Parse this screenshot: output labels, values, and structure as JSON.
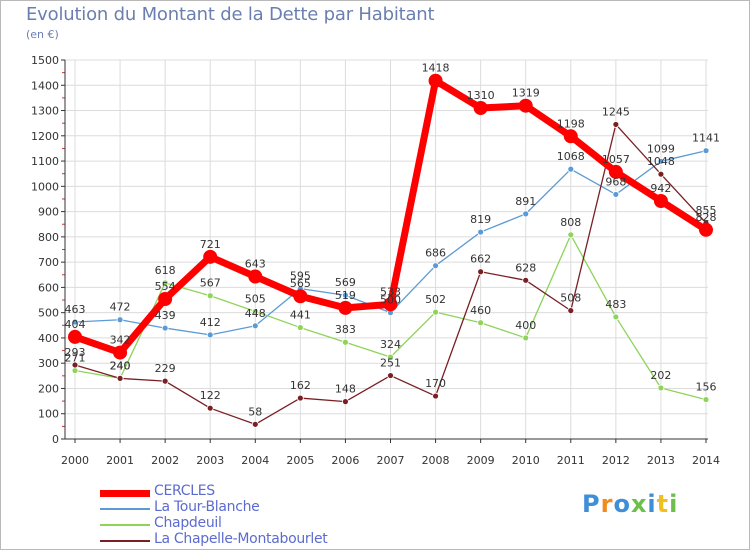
{
  "title": "Evolution du Montant de la Dette par Habitant",
  "subtitle": "(en €)",
  "logo": {
    "text": "Proxiti",
    "letter_colors": [
      "#3f8fd6",
      "#f28b1e",
      "#3f8fd6",
      "#6cc04a",
      "#3f8fd6",
      "#f2c01e",
      "#6cc04a"
    ]
  },
  "chart_data": {
    "type": "line",
    "categories": [
      "2000",
      "2001",
      "2002",
      "2003",
      "2004",
      "2005",
      "2006",
      "2007",
      "2008",
      "2009",
      "2010",
      "2011",
      "2012",
      "2013",
      "2014"
    ],
    "ylim": [
      0,
      1500
    ],
    "yticks": [
      0,
      100,
      200,
      300,
      400,
      500,
      600,
      700,
      800,
      900,
      1000,
      1100,
      1200,
      1300,
      1400,
      1500
    ],
    "grid": true,
    "legend_position": "bottom-left",
    "series": [
      {
        "name": "CERCLES",
        "color": "#ff0000",
        "stroke_width": 7,
        "marker_radius": 7,
        "values": [
          404,
          342,
          554,
          721,
          643,
          565,
          519,
          533,
          1418,
          1310,
          1319,
          1198,
          1057,
          942,
          828
        ]
      },
      {
        "name": "La Tour-Blanche",
        "color": "#5b9bd5",
        "stroke_width": 1.3,
        "marker_radius": 3,
        "values": [
          463,
          472,
          439,
          412,
          448,
          595,
          569,
          500,
          686,
          819,
          891,
          1068,
          968,
          1099,
          1141
        ]
      },
      {
        "name": "Chapdeuil",
        "color": "#8ed35a",
        "stroke_width": 1.3,
        "marker_radius": 3,
        "values": [
          271,
          240,
          618,
          567,
          505,
          441,
          383,
          324,
          502,
          460,
          400,
          808,
          483,
          202,
          156
        ]
      },
      {
        "name": "La Chapelle-Montabourlet",
        "color": "#7a1f24",
        "stroke_width": 1.3,
        "marker_radius": 3,
        "values": [
          293,
          240,
          229,
          122,
          58,
          162,
          148,
          251,
          170,
          662,
          628,
          508,
          1245,
          1048,
          855
        ]
      }
    ],
    "label_series_order": [
      2,
      3,
      1,
      0
    ]
  }
}
